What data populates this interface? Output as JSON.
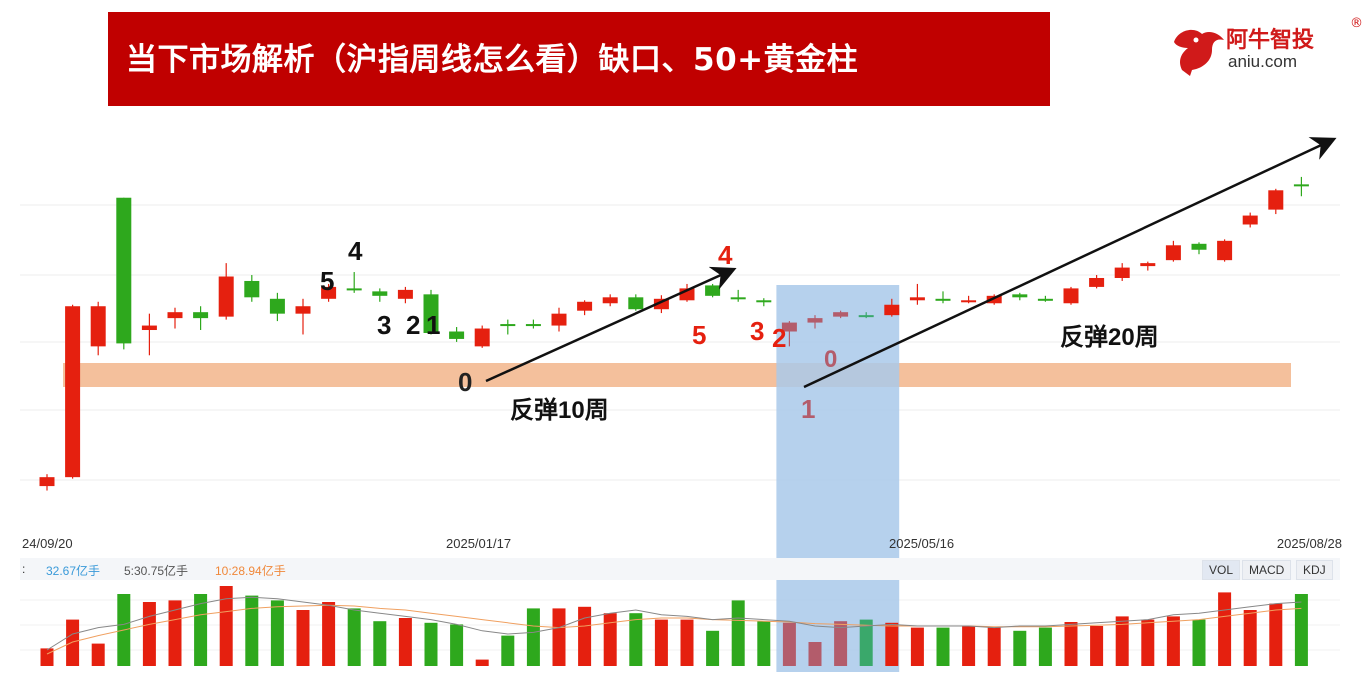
{
  "title": "当下市场解析（沪指周线怎么看）缺口、50+黄金柱",
  "logo": {
    "name": "阿牛智投",
    "registered": "®",
    "domain": "aniu.com",
    "brand_color": "#d01a1a"
  },
  "colors": {
    "title_bg": "#c00000",
    "up": "#e5200f",
    "down": "#2ea81d",
    "highlight_up": "#b35c6b",
    "highlight_down": "#3aa86b",
    "band": "#f4c09c",
    "box": "#a9c9ea",
    "ma_orange": "#f0a060",
    "ma_gray": "#888888"
  },
  "annotations": {
    "left_count": [
      "5",
      "4",
      "3",
      "2",
      "1"
    ],
    "first_zero": "0",
    "first_rebound": "反弹10周",
    "red_count": [
      "4",
      "5",
      "3",
      "2"
    ],
    "second_zero": "0",
    "second_one": "1",
    "second_rebound": "反弹20周"
  },
  "volume_legend": {
    "prefix": ":",
    "v1": "32.67亿手",
    "v2": "5:30.75亿手",
    "v3": "10:28.94亿手",
    "v1_color": "#3a9ad9",
    "v2_color": "#555555",
    "v3_color": "#f0883a"
  },
  "tabs": [
    "VOL",
    "MACD",
    "KDJ"
  ],
  "active_tab": "VOL",
  "chart_data": {
    "type": "candlestick",
    "x_ticks": [
      "24/09/20",
      "2025/01/17",
      "2025/05/16",
      "2025/08/28"
    ],
    "candles": [
      {
        "o": 2730,
        "c": 2760,
        "h": 2770,
        "l": 2715,
        "up": true
      },
      {
        "o": 2760,
        "c": 3335,
        "h": 3340,
        "l": 2755,
        "up": true
      },
      {
        "o": 3200,
        "c": 3335,
        "h": 3350,
        "l": 3170,
        "up": true
      },
      {
        "o": 3700,
        "c": 3210,
        "h": 3700,
        "l": 3190,
        "up": false
      },
      {
        "o": 3255,
        "c": 3270,
        "h": 3310,
        "l": 3170,
        "up": true
      },
      {
        "o": 3295,
        "c": 3315,
        "h": 3330,
        "l": 3260,
        "up": true
      },
      {
        "o": 3315,
        "c": 3295,
        "h": 3335,
        "l": 3255,
        "up": false
      },
      {
        "o": 3300,
        "c": 3435,
        "h": 3480,
        "l": 3290,
        "up": true
      },
      {
        "o": 3420,
        "c": 3365,
        "h": 3440,
        "l": 3350,
        "up": false
      },
      {
        "o": 3360,
        "c": 3310,
        "h": 3380,
        "l": 3285,
        "up": false
      },
      {
        "o": 3310,
        "c": 3335,
        "h": 3360,
        "l": 3240,
        "up": true
      },
      {
        "o": 3360,
        "c": 3400,
        "h": 3410,
        "l": 3350,
        "up": true
      },
      {
        "o": 3395,
        "c": 3390,
        "h": 3450,
        "l": 3380,
        "up": false
      },
      {
        "o": 3385,
        "c": 3370,
        "h": 3395,
        "l": 3350,
        "up": false
      },
      {
        "o": 3390,
        "c": 3360,
        "h": 3400,
        "l": 3345,
        "up": true
      },
      {
        "o": 3375,
        "c": 3245,
        "h": 3390,
        "l": 3240,
        "up": false
      },
      {
        "o": 3250,
        "c": 3225,
        "h": 3265,
        "l": 3215,
        "up": false
      },
      {
        "o": 3200,
        "c": 3260,
        "h": 3270,
        "l": 3195,
        "up": true
      },
      {
        "o": 3270,
        "c": 3275,
        "h": 3290,
        "l": 3240,
        "up": false
      },
      {
        "o": 3275,
        "c": 3270,
        "h": 3290,
        "l": 3260,
        "up": false
      },
      {
        "o": 3270,
        "c": 3310,
        "h": 3330,
        "l": 3250,
        "up": true
      },
      {
        "o": 3320,
        "c": 3350,
        "h": 3355,
        "l": 3305,
        "up": true
      },
      {
        "o": 3345,
        "c": 3365,
        "h": 3375,
        "l": 3335,
        "up": true
      },
      {
        "o": 3365,
        "c": 3325,
        "h": 3375,
        "l": 3320,
        "up": false
      },
      {
        "o": 3325,
        "c": 3360,
        "h": 3372,
        "l": 3312,
        "up": true
      },
      {
        "o": 3355,
        "c": 3395,
        "h": 3410,
        "l": 3350,
        "up": true
      },
      {
        "o": 3405,
        "c": 3370,
        "h": 3410,
        "l": 3365,
        "up": false
      },
      {
        "o": 3365,
        "c": 3360,
        "h": 3390,
        "l": 3350,
        "up": false
      },
      {
        "o": 3355,
        "c": 3350,
        "h": 3362,
        "l": 3335,
        "up": false
      },
      {
        "o": 3250,
        "c": 3280,
        "h": 3285,
        "l": 3200,
        "up": true
      },
      {
        "o": 3295,
        "c": 3280,
        "h": 3305,
        "l": 3260,
        "up": true
      },
      {
        "o": 3300,
        "c": 3315,
        "h": 3320,
        "l": 3295,
        "up": true
      },
      {
        "o": 3300,
        "c": 3305,
        "h": 3315,
        "l": 3295,
        "up": false
      },
      {
        "o": 3305,
        "c": 3340,
        "h": 3360,
        "l": 3300,
        "up": true
      },
      {
        "o": 3355,
        "c": 3365,
        "h": 3410,
        "l": 3340,
        "up": true
      },
      {
        "o": 3360,
        "c": 3355,
        "h": 3385,
        "l": 3345,
        "up": false
      },
      {
        "o": 3355,
        "c": 3350,
        "h": 3370,
        "l": 3345,
        "up": true
      },
      {
        "o": 3345,
        "c": 3370,
        "h": 3375,
        "l": 3340,
        "up": true
      },
      {
        "o": 3365,
        "c": 3375,
        "h": 3380,
        "l": 3355,
        "up": false
      },
      {
        "o": 3360,
        "c": 3360,
        "h": 3370,
        "l": 3350,
        "up": false
      },
      {
        "o": 3345,
        "c": 3395,
        "h": 3400,
        "l": 3340,
        "up": true
      },
      {
        "o": 3400,
        "c": 3430,
        "h": 3440,
        "l": 3395,
        "up": true
      },
      {
        "o": 3430,
        "c": 3465,
        "h": 3480,
        "l": 3420,
        "up": true
      },
      {
        "o": 3470,
        "c": 3480,
        "h": 3485,
        "l": 3455,
        "up": true
      },
      {
        "o": 3490,
        "c": 3540,
        "h": 3555,
        "l": 3485,
        "up": true
      },
      {
        "o": 3525,
        "c": 3545,
        "h": 3550,
        "l": 3510,
        "up": false
      },
      {
        "o": 3490,
        "c": 3555,
        "h": 3560,
        "l": 3485,
        "up": true
      },
      {
        "o": 3610,
        "c": 3640,
        "h": 3650,
        "l": 3600,
        "up": true
      },
      {
        "o": 3660,
        "c": 3725,
        "h": 3730,
        "l": 3645,
        "up": true
      },
      {
        "o": 3745,
        "c": 3745,
        "h": 3770,
        "l": 3705,
        "up": false
      }
    ],
    "volume": [
      22,
      58,
      28,
      90,
      80,
      82,
      90,
      100,
      88,
      82,
      70,
      80,
      72,
      56,
      60,
      54,
      52,
      8,
      38,
      72,
      72,
      74,
      66,
      66,
      58,
      58,
      44,
      82,
      56,
      54,
      30,
      56,
      58,
      54,
      48,
      48,
      50,
      48,
      44,
      48,
      55,
      50,
      62,
      58,
      62,
      58,
      92,
      70,
      78,
      90
    ],
    "vol_ma5": [
      20,
      40,
      48,
      52,
      62,
      70,
      78,
      84,
      86,
      84,
      80,
      76,
      70,
      66,
      62,
      58,
      52,
      44,
      40,
      42,
      48,
      60,
      66,
      70,
      64,
      62,
      58,
      60,
      58,
      56,
      50,
      48,
      50,
      52,
      50,
      50,
      50,
      48,
      50,
      50,
      52,
      54,
      56,
      58,
      64,
      66,
      70,
      74,
      78,
      80
    ],
    "vol_ma10": [
      15,
      30,
      38,
      45,
      52,
      58,
      64,
      68,
      72,
      74,
      75,
      76,
      75,
      72,
      70,
      66,
      62,
      58,
      54,
      50,
      48,
      50,
      54,
      58,
      60,
      60,
      58,
      57,
      56,
      55,
      53,
      52,
      51,
      50,
      50,
      50,
      50,
      49,
      49,
      49,
      50,
      51,
      52,
      54,
      56,
      58,
      62,
      66,
      70,
      72
    ],
    "highlight_range": [
      29,
      32
    ]
  }
}
